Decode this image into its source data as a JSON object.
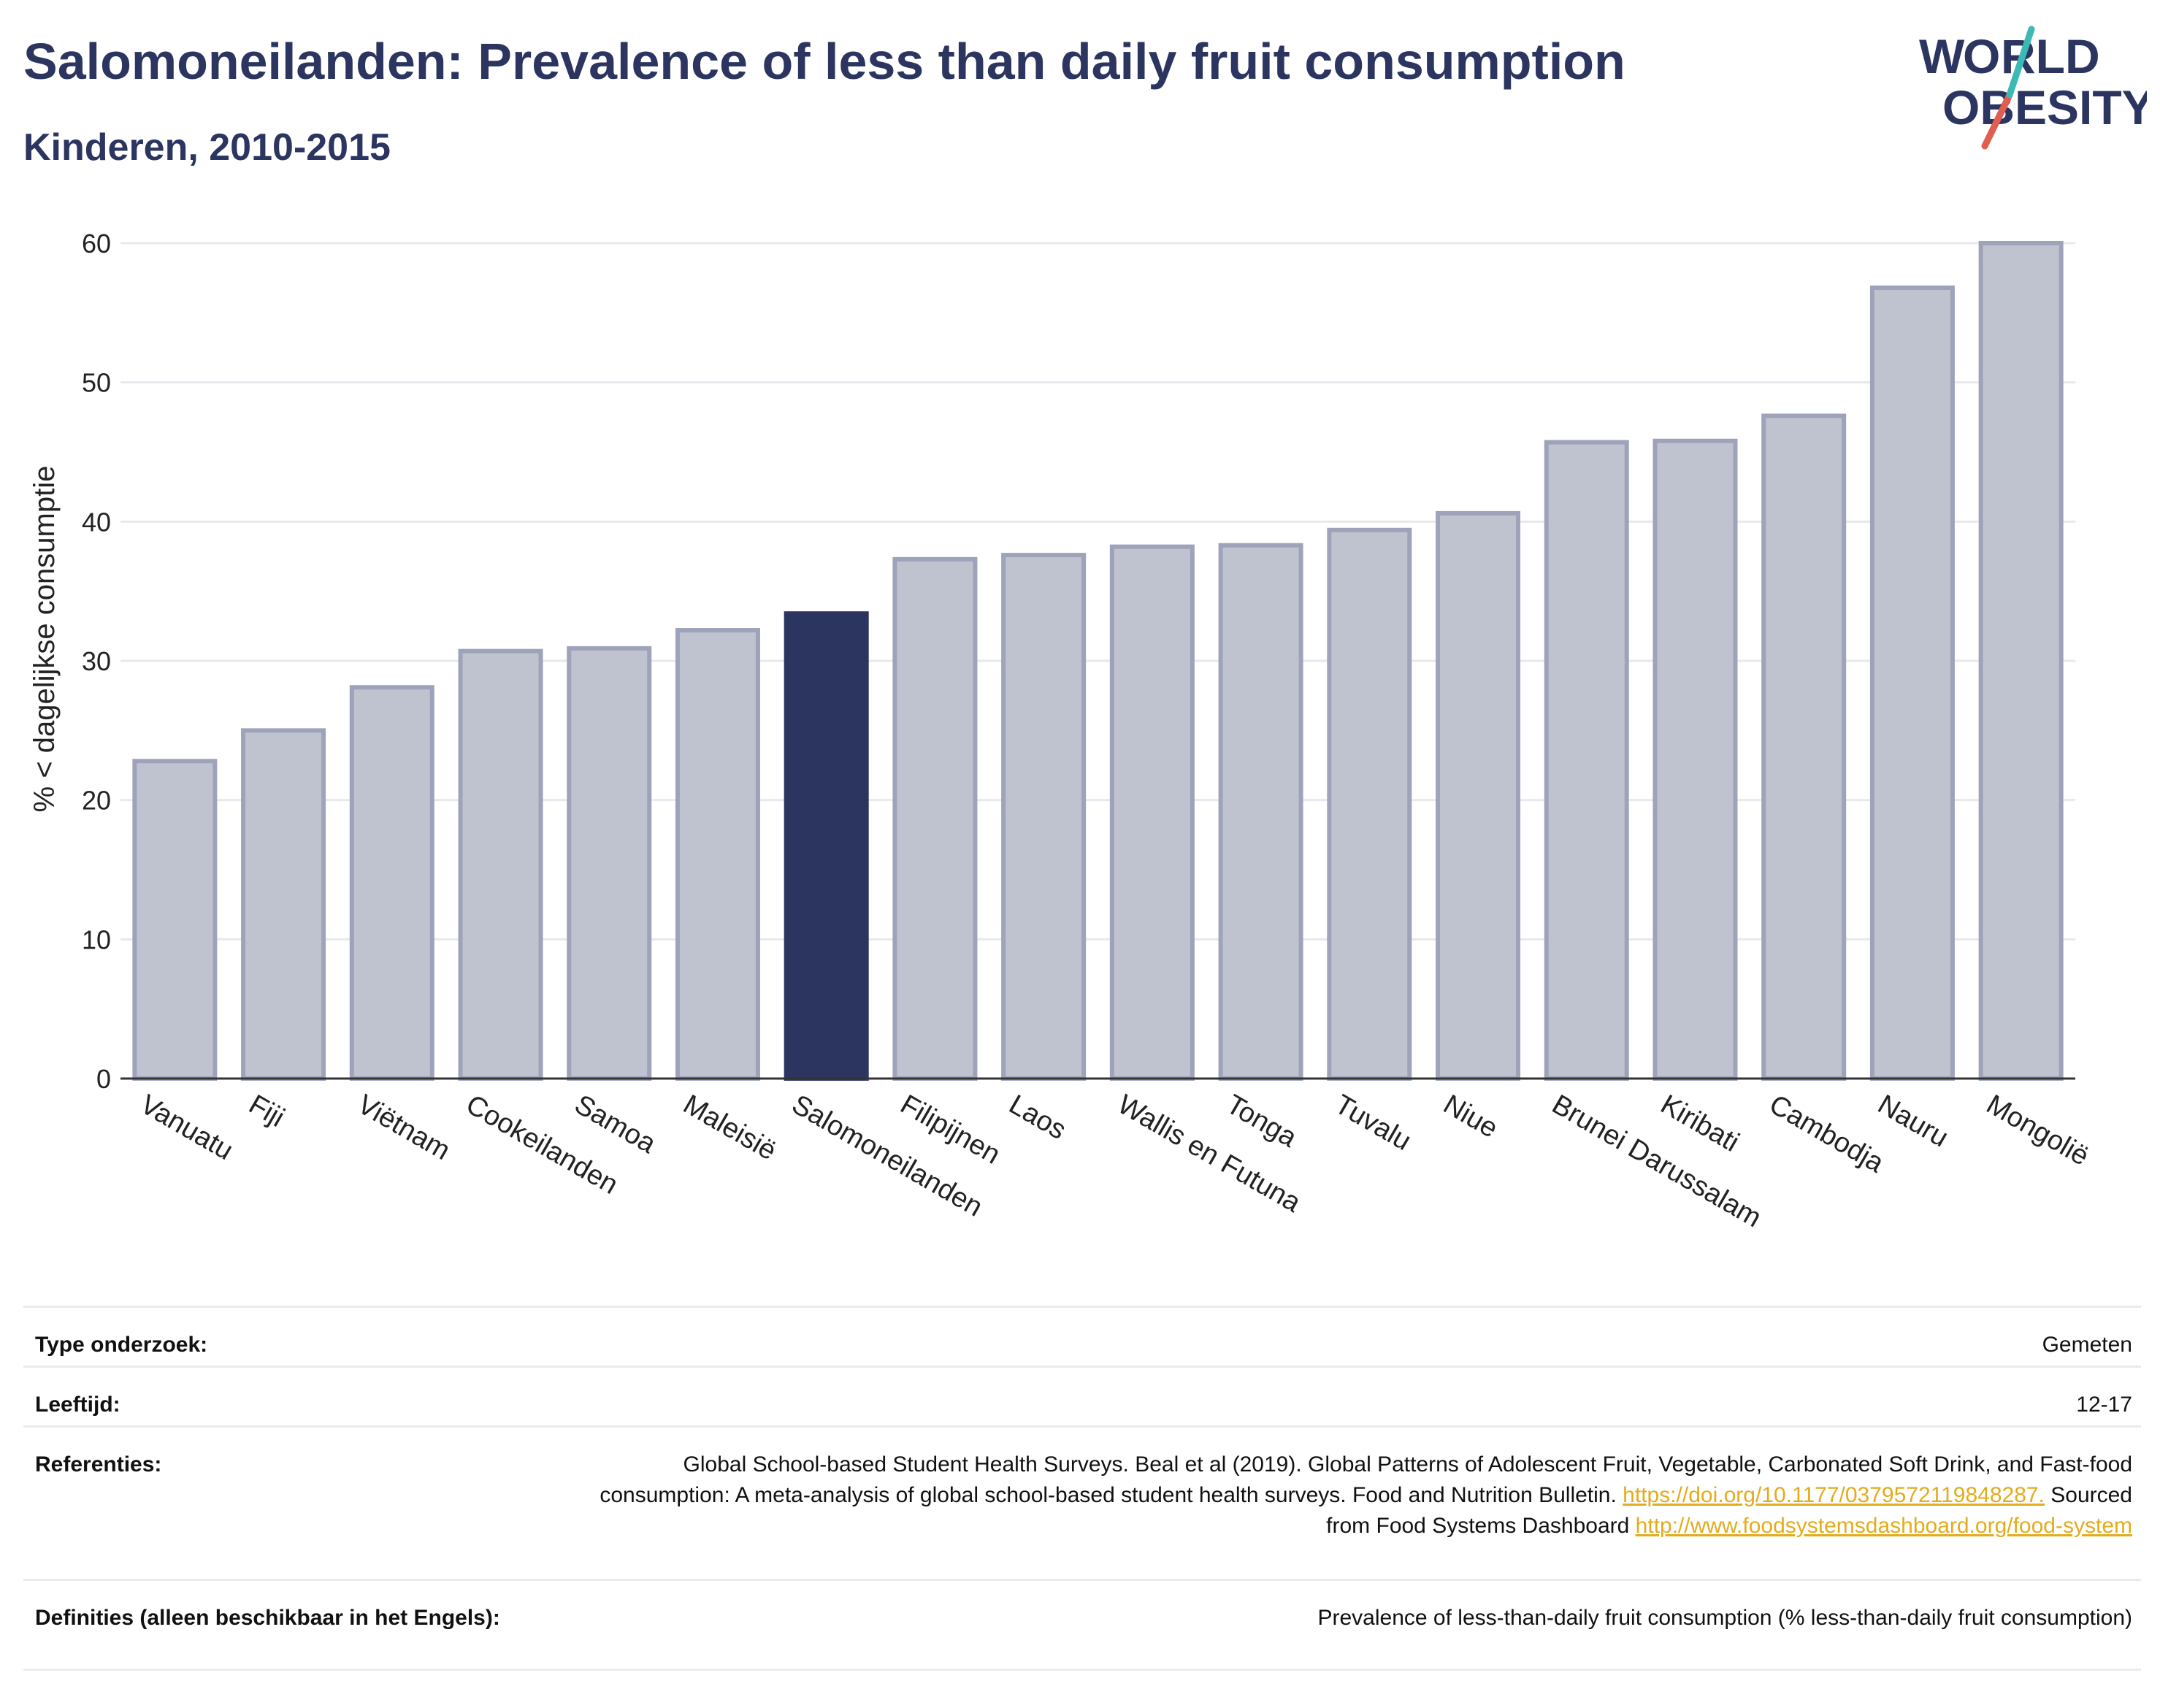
{
  "header": {
    "title": "Salomoneilanden: Prevalence of less than daily fruit consumption",
    "subtitle": "Kinderen, 2010-2015"
  },
  "logo": {
    "line1": "WORLD",
    "line2": "OBESITY"
  },
  "colors": {
    "highlight": "#2b3560",
    "bar": "#bfc2cf",
    "bar_edge": "#9ea3ba",
    "accent_teal": "#3cb9b5",
    "accent_red": "#e05d4f"
  },
  "chart_data": {
    "type": "bar",
    "title": "Salomoneilanden: Prevalence of less than daily fruit consumption",
    "subtitle": "Kinderen, 2010-2015",
    "ylabel": "% < dagelijkse consumptie",
    "xlabel": "",
    "ylim": [
      0,
      62
    ],
    "yticks": [
      0,
      10,
      20,
      30,
      40,
      50,
      60
    ],
    "grid": true,
    "highlight": "Salomoneilanden",
    "categories": [
      "Vanuatu",
      "Fiji",
      "Viëtnam",
      "Cookeilanden",
      "Samoa",
      "Maleisië",
      "Salomoneilanden",
      "Filipijnen",
      "Laos",
      "Wallis en Futuna",
      "Tonga",
      "Tuvalu",
      "Niue",
      "Brunei Darussalam",
      "Kiribati",
      "Cambodja",
      "Nauru",
      "Mongolië"
    ],
    "values": [
      22.8,
      25.0,
      28.1,
      30.7,
      30.9,
      32.2,
      33.4,
      37.3,
      37.6,
      38.2,
      38.3,
      39.4,
      40.6,
      45.7,
      45.8,
      47.6,
      56.8,
      60.0
    ]
  },
  "table": [
    {
      "key": "Type onderzoek:",
      "value": "Gemeten"
    },
    {
      "key": "Leeftijd:",
      "value": "12-17"
    },
    {
      "key": "Referenties:",
      "text1": "Global School-based Student Health Surveys. Beal et al (2019). Global Patterns of Adolescent Fruit, Vegetable, Carbonated Soft Drink, and Fast-food consumption: A meta-analysis of global school-based student health surveys. Food and Nutrition Bulletin.",
      "link1": "https://doi.org/10.1177/0379572119848287.",
      "text2": "Sourced from Food Systems Dashboard",
      "link2": "http://www.foodsystemsdashboard.org/food-system"
    },
    {
      "key": "Definities (alleen beschikbaar in het Engels):",
      "value": "Prevalence of less-than-daily fruit consumption (% less-than-daily fruit consumption)"
    }
  ]
}
